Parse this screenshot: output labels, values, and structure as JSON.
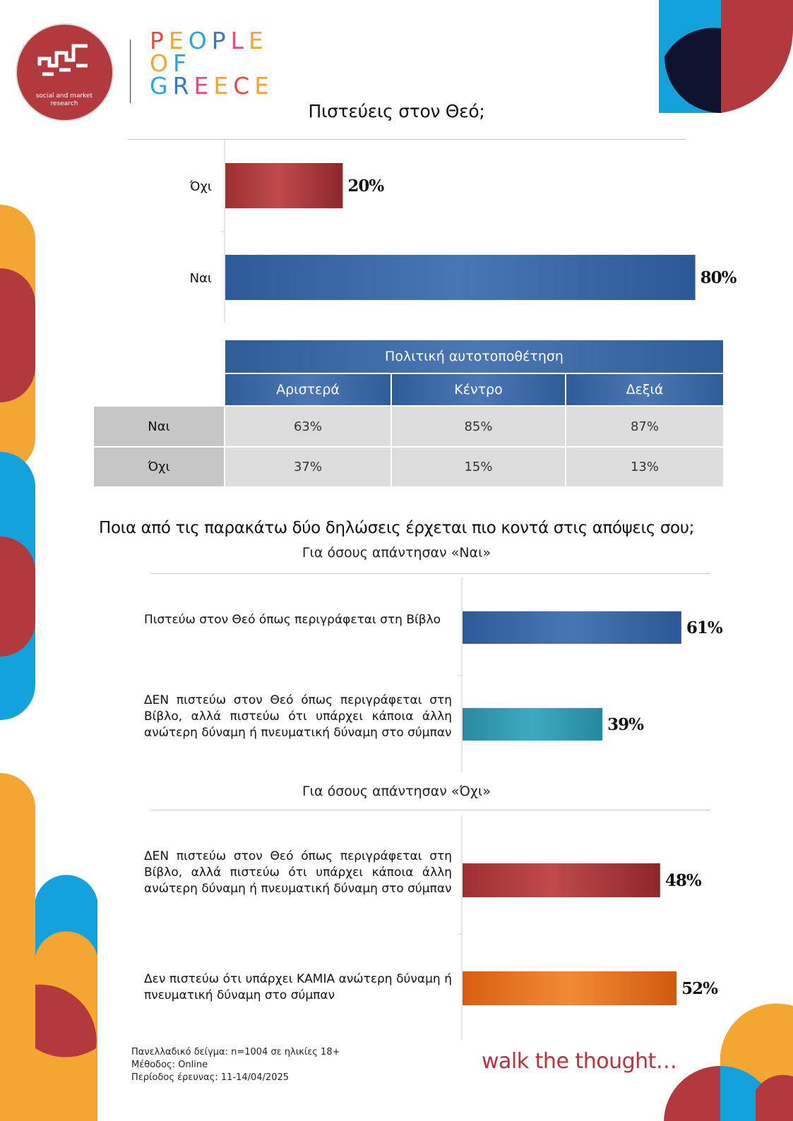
{
  "brand": {
    "logo_text": "social and market research",
    "wordmark": [
      "PEOPLE",
      "OF",
      "GREECE"
    ],
    "wordmark_colors": [
      "#e8493f",
      "#f2a532",
      "#2ba3dc",
      "#3a78c2",
      "#e84a7f",
      "#f2a532"
    ]
  },
  "colors": {
    "red": "#b23a3e",
    "blue": "#3a6aa8",
    "teal": "#2e9db5",
    "orange": "#e46c1a",
    "yellow": "#f4a633",
    "cyan": "#14a2dd",
    "navy": "#0e1330"
  },
  "section1": {
    "title": "Πιστεύεις στον Θεό;",
    "chart_data": {
      "type": "bar",
      "orientation": "horizontal",
      "categories": [
        "Όχι",
        "Ναι"
      ],
      "values": [
        20,
        80
      ],
      "value_labels": [
        "20%",
        "80%"
      ],
      "unit": "%",
      "xlim": [
        0,
        100
      ]
    }
  },
  "table": {
    "group_header": "Πολιτική αυτοτοποθέτηση",
    "columns": [
      "Αριστερά",
      "Κέντρο",
      "Δεξιά"
    ],
    "rows": [
      {
        "label": "Ναι",
        "values": [
          "63%",
          "85%",
          "87%"
        ]
      },
      {
        "label": "Όχι",
        "values": [
          "37%",
          "15%",
          "13%"
        ]
      }
    ]
  },
  "section2": {
    "title": "Ποια από τις παρακάτω δύο δηλώσεις έρχεται πιο κοντά στις απόψεις σου;",
    "groups": [
      {
        "subtitle": "Για όσους απάντησαν «Ναι»",
        "chart_data": {
          "type": "bar",
          "orientation": "horizontal",
          "categories": [
            "Πιστεύω στον Θεό όπως περιγράφεται στη Βίβλο",
            "ΔΕΝ πιστεύω στον Θεό όπως περιγράφεται στη Βίβλο, αλλά πιστεύω ότι υπάρχει κάποια άλλη ανώτερη δύναμη ή πνευματική δύναμη στο σύμπαν"
          ],
          "values": [
            61,
            39
          ],
          "value_labels": [
            "61%",
            "39%"
          ],
          "unit": "%",
          "xlim": [
            0,
            100
          ]
        }
      },
      {
        "subtitle": "Για όσους απάντησαν «Όχι»",
        "chart_data": {
          "type": "bar",
          "orientation": "horizontal",
          "categories": [
            "ΔΕΝ πιστεύω στον Θεό όπως περιγράφεται στη Βίβλο, αλλά πιστεύω ότι υπάρχει κάποια άλλη ανώτερη δύναμη ή πνευματική δύναμη στο σύμπαν",
            "Δεν πιστεύω ότι υπάρχει ΚΑΜΙΑ ανώτερη δύναμη ή πνευματική δύναμη στο σύμπαν"
          ],
          "values": [
            48,
            52
          ],
          "value_labels": [
            "48%",
            "52%"
          ],
          "unit": "%",
          "xlim": [
            0,
            100
          ]
        }
      }
    ]
  },
  "footer": {
    "lines": [
      "Πανελλαδικό δείγμα: n=1004 σε ηλικίες 18+",
      "Μέθοδος: Online",
      "Περίοδος έρευνας: 11-14/04/2025"
    ],
    "tagline": "walk the thought…"
  }
}
